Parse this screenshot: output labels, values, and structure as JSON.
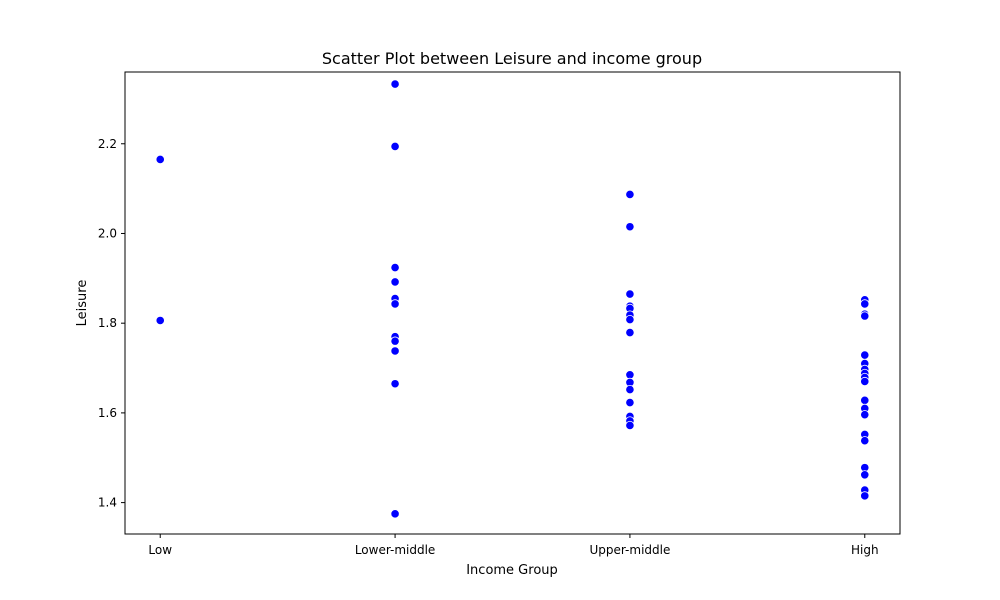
{
  "chart_data": {
    "type": "scatter",
    "title": "Scatter Plot between Leisure and income group",
    "xlabel": "Income Group",
    "ylabel": "Leisure",
    "categories": [
      "Low",
      "Lower-middle",
      "Upper-middle",
      "High"
    ],
    "ylim": [
      1.33,
      2.36
    ],
    "yticks": [
      "1.4",
      "1.6",
      "1.8",
      "2.0",
      "2.2"
    ],
    "grid": false,
    "legend": "none",
    "marker_color": "#0000ff",
    "marker_edge_color": "#ffffff",
    "points": [
      {
        "category": "Low",
        "y": 2.165
      },
      {
        "category": "Low",
        "y": 1.806
      },
      {
        "category": "Lower-middle",
        "y": 2.333
      },
      {
        "category": "Lower-middle",
        "y": 2.194
      },
      {
        "category": "Lower-middle",
        "y": 1.924
      },
      {
        "category": "Lower-middle",
        "y": 1.892
      },
      {
        "category": "Lower-middle",
        "y": 1.855
      },
      {
        "category": "Lower-middle",
        "y": 1.843
      },
      {
        "category": "Lower-middle",
        "y": 1.77
      },
      {
        "category": "Lower-middle",
        "y": 1.76
      },
      {
        "category": "Lower-middle",
        "y": 1.738
      },
      {
        "category": "Lower-middle",
        "y": 1.665
      },
      {
        "category": "Lower-middle",
        "y": 1.375
      },
      {
        "category": "Upper-middle",
        "y": 2.087
      },
      {
        "category": "Upper-middle",
        "y": 2.015
      },
      {
        "category": "Upper-middle",
        "y": 1.865
      },
      {
        "category": "Upper-middle",
        "y": 1.838
      },
      {
        "category": "Upper-middle",
        "y": 1.833
      },
      {
        "category": "Upper-middle",
        "y": 1.818
      },
      {
        "category": "Upper-middle",
        "y": 1.808
      },
      {
        "category": "Upper-middle",
        "y": 1.779
      },
      {
        "category": "Upper-middle",
        "y": 1.685
      },
      {
        "category": "Upper-middle",
        "y": 1.668
      },
      {
        "category": "Upper-middle",
        "y": 1.652
      },
      {
        "category": "Upper-middle",
        "y": 1.623
      },
      {
        "category": "Upper-middle",
        "y": 1.592
      },
      {
        "category": "Upper-middle",
        "y": 1.582
      },
      {
        "category": "Upper-middle",
        "y": 1.572
      },
      {
        "category": "High",
        "y": 1.852
      },
      {
        "category": "High",
        "y": 1.843
      },
      {
        "category": "High",
        "y": 1.82
      },
      {
        "category": "High",
        "y": 1.816
      },
      {
        "category": "High",
        "y": 1.729
      },
      {
        "category": "High",
        "y": 1.71
      },
      {
        "category": "High",
        "y": 1.697
      },
      {
        "category": "High",
        "y": 1.688
      },
      {
        "category": "High",
        "y": 1.679
      },
      {
        "category": "High",
        "y": 1.67
      },
      {
        "category": "High",
        "y": 1.628
      },
      {
        "category": "High",
        "y": 1.61
      },
      {
        "category": "High",
        "y": 1.596
      },
      {
        "category": "High",
        "y": 1.552
      },
      {
        "category": "High",
        "y": 1.538
      },
      {
        "category": "High",
        "y": 1.478
      },
      {
        "category": "High",
        "y": 1.462
      },
      {
        "category": "High",
        "y": 1.428
      },
      {
        "category": "High",
        "y": 1.415
      }
    ]
  }
}
